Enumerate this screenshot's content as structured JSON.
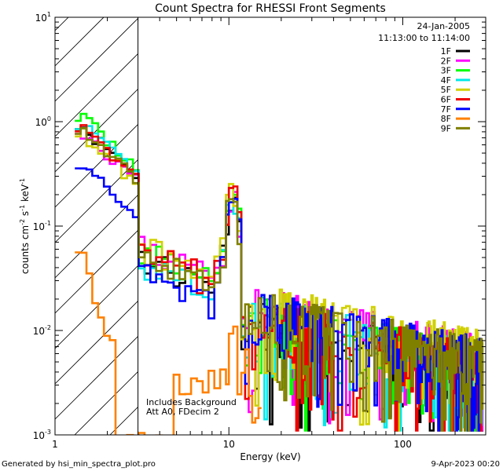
{
  "chart_data": {
    "type": "line",
    "title": "Count Spectra for RHESSI Front Segments",
    "xlabel": "Energy (keV)",
    "ylabel": "counts cm",
    "ylabel_exp1": "-2",
    "ylabel_mid": " s",
    "ylabel_exp2": "-1",
    "ylabel_end": " keV",
    "ylabel_exp3": "-1",
    "x_scale": "log",
    "y_scale": "log",
    "xlim": [
      1,
      300
    ],
    "ylim": [
      0.001,
      10
    ],
    "x_ticks": [
      {
        "value": 1,
        "label": "1"
      },
      {
        "value": 10,
        "label": "10"
      },
      {
        "value": 100,
        "label": "100"
      }
    ],
    "y_ticks": [
      {
        "value": 10,
        "base": "10",
        "exp": "1"
      },
      {
        "value": 1,
        "base": "10",
        "exp": "0"
      },
      {
        "value": 0.1,
        "base": "10",
        "exp": "-1"
      },
      {
        "value": 0.01,
        "base": "10",
        "exp": "-2"
      },
      {
        "value": 0.001,
        "base": "10",
        "exp": "-3"
      }
    ],
    "date": "24-Jan-2005",
    "time_range": "11:13:00 to 11:14:00",
    "attenuator_line_x": 3,
    "annotation_line1": "Includes Background",
    "annotation_line2": "Att A0, FDecim 2",
    "footer_left": "Generated by hsi_min_spectra_plot.pro",
    "footer_right": "9-Apr-2023 00:20",
    "series": [
      {
        "name": "1F",
        "color": "#000000",
        "hl": 0.45,
        "bump": 0.55,
        "tail": 0.55,
        "lowE": 1.0,
        "seed": 11
      },
      {
        "name": "2F",
        "color": "#ff00ff",
        "hl": 0.55,
        "bump": 0.65,
        "tail": 0.75,
        "lowE": 0.9,
        "seed": 23
      },
      {
        "name": "3F",
        "color": "#00ff00",
        "hl": 0.5,
        "bump": 0.7,
        "tail": 0.6,
        "lowE": 1.2,
        "seed": 37
      },
      {
        "name": "4F",
        "color": "#00e8e8",
        "hl": 0.42,
        "bump": 0.6,
        "tail": 0.65,
        "lowE": 1.0,
        "seed": 41
      },
      {
        "name": "5F",
        "color": "#d0d000",
        "hl": 0.6,
        "bump": 0.75,
        "tail": 0.85,
        "lowE": 0.85,
        "seed": 53
      },
      {
        "name": "6F",
        "color": "#ee0000",
        "hl": 0.5,
        "bump": 0.6,
        "tail": 0.6,
        "lowE": 0.95,
        "seed": 67
      },
      {
        "name": "7F",
        "color": "#0000ff",
        "hl": 0.3,
        "bump": 0.55,
        "tail": 0.7,
        "lowE": 0.42,
        "seed": 71
      },
      {
        "name": "8F",
        "color": "#ff8000",
        "hl": 0.05,
        "bump": 0.05,
        "tail": 0.05,
        "lowE": 0.07,
        "seed": 83
      },
      {
        "name": "9F",
        "color": "#808000",
        "hl": 0.5,
        "bump": 0.6,
        "tail": 0.7,
        "lowE": 0.9,
        "seed": 97
      }
    ]
  }
}
